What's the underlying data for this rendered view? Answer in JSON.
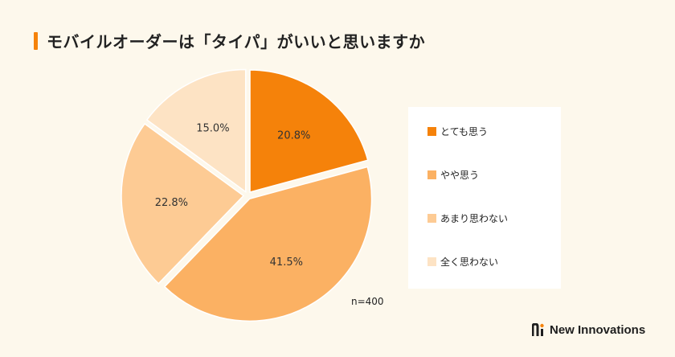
{
  "title": "モバイルオーダーは「タイパ」がいいと思いますか",
  "note": "n=400",
  "brand": {
    "name": "New Innovations",
    "logo_icon": "ni-logo-icon"
  },
  "colors": {
    "accent": "#f5820a"
  },
  "chart_data": {
    "type": "pie",
    "title": "モバイルオーダーは「タイパ」がいいと思いますか",
    "slices": [
      {
        "label": "とても思う",
        "value": 20.8,
        "display": "20.8%",
        "color": "#f5820a"
      },
      {
        "label": "やや思う",
        "value": 41.5,
        "display": "41.5%",
        "color": "#fbb163"
      },
      {
        "label": "あまり思わない",
        "value": 22.8,
        "display": "22.8%",
        "color": "#fdcb94"
      },
      {
        "label": "全く思わない",
        "value": 15.0,
        "display": "15.0%",
        "color": "#fde3c4"
      }
    ],
    "start": "12 o'clock",
    "direction": "clockwise",
    "exploded": true,
    "legend_position": "right",
    "n": "n=400"
  }
}
